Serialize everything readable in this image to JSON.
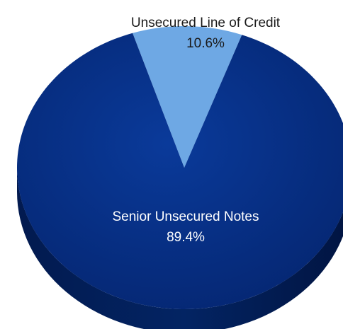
{
  "chart_data": {
    "type": "pie",
    "slices": [
      {
        "label": "Unsecured Line of Credit",
        "value": 10.6,
        "value_label": "10.6%",
        "color": "#6ea8e4"
      },
      {
        "label": "Senior Unsecured Notes",
        "value": 89.4,
        "value_label": "89.4%",
        "color": "#062d82"
      }
    ],
    "label_colors": {
      "outside": "#1a1a1a",
      "inside": "#ffffff"
    },
    "legend": "none",
    "three_d": true
  }
}
